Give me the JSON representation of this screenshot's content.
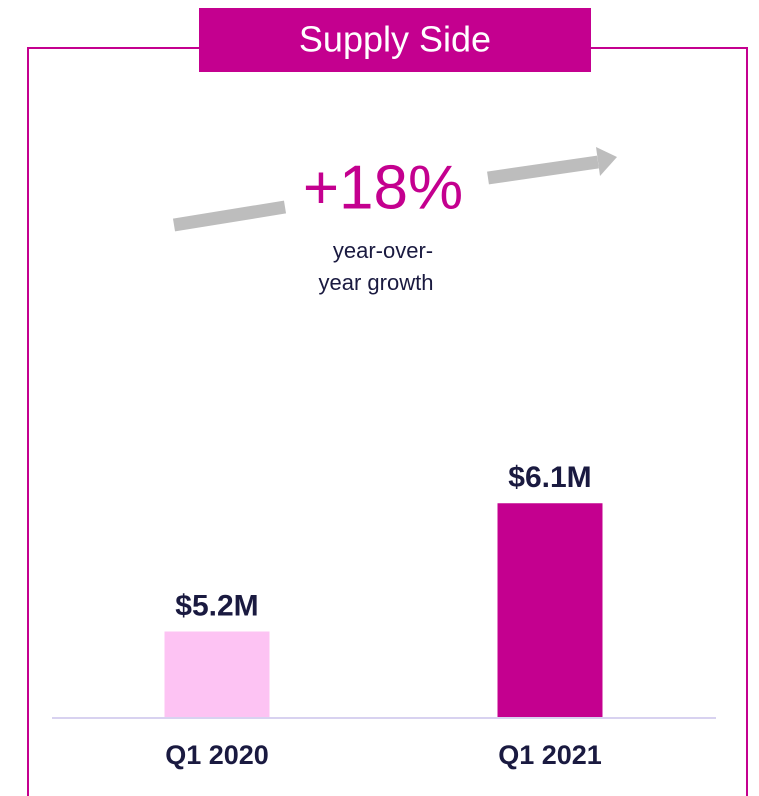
{
  "chart_data": {
    "type": "bar",
    "title": "Supply Side",
    "annotation": {
      "text": "+18%",
      "caption": [
        "year-over-",
        "year growth"
      ]
    },
    "categories": [
      "Q1 2020",
      "Q1 2021"
    ],
    "values": [
      5.2,
      6.1
    ],
    "value_labels": [
      "$5.2M",
      "$6.1M"
    ],
    "colors": [
      "#fdc3f3",
      "#c4008f"
    ],
    "ylim": [
      4.6,
      6.2
    ]
  }
}
